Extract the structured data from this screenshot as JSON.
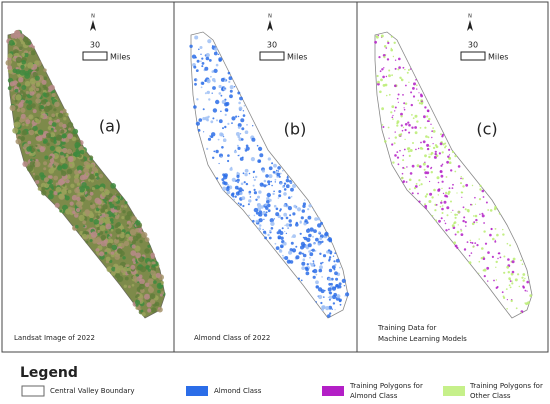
{
  "panels": [
    {
      "letter": "(a)",
      "caption": [
        "Landsat Image of 2022"
      ],
      "north": "N",
      "scale_value": "30",
      "scale_unit": "Miles"
    },
    {
      "letter": "(b)",
      "caption": [
        "Almond Class of 2022"
      ],
      "north": "N",
      "scale_value": "30",
      "scale_unit": "Miles"
    },
    {
      "letter": "(c)",
      "caption": [
        "Training Data for",
        "Machine Learning Models"
      ],
      "north": "N",
      "scale_value": "30",
      "scale_unit": "Miles"
    }
  ],
  "legend": {
    "title": "Legend",
    "items": [
      {
        "label": [
          "Central Valley Boundary"
        ]
      },
      {
        "label": [
          "Almond Class"
        ]
      },
      {
        "label": [
          "Training Polygons for",
          "Almond Class"
        ]
      },
      {
        "label": [
          "Training Polygons for",
          "Other Class"
        ]
      }
    ]
  }
}
